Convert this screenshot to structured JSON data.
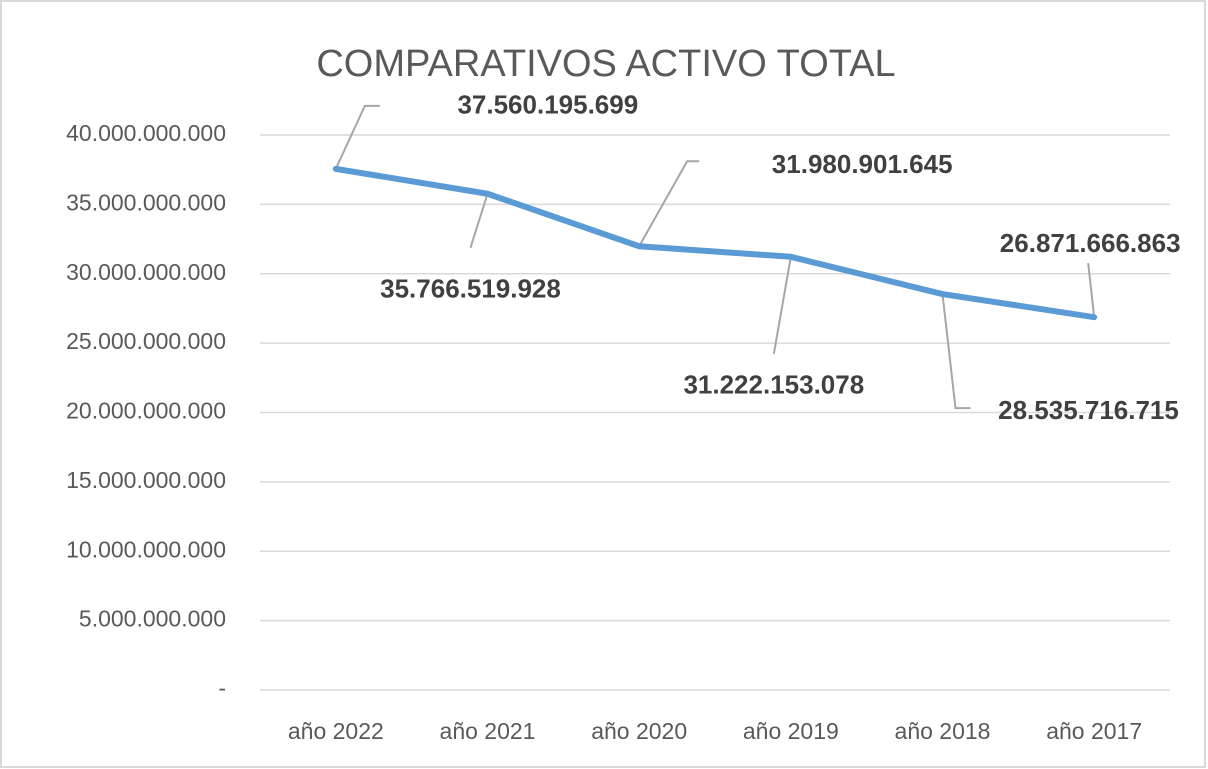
{
  "chart_data": {
    "type": "line",
    "title": "COMPARATIVOS ACTIVO TOTAL",
    "categories": [
      "año 2022",
      "año 2021",
      "año 2020",
      "año 2019",
      "año 2018",
      "año 2017"
    ],
    "series": [
      {
        "name": "Activo Total",
        "color": "#5b9bd5",
        "values": [
          37560195699,
          35766519928,
          31980901645,
          31222153078,
          28535716715,
          26871666863
        ],
        "value_labels": [
          "37.560.195.699",
          "35.766.519.928",
          "31.980.901.645",
          "31.222.153.078",
          "28.535.716.715",
          "26.871.666.863"
        ]
      }
    ],
    "ylim": [
      0,
      40000000000
    ],
    "yticks": [
      {
        "value": 0,
        "label": "-"
      },
      {
        "value": 5000000000,
        "label": "5.000.000.000"
      },
      {
        "value": 10000000000,
        "label": "10.000.000.000"
      },
      {
        "value": 15000000000,
        "label": "15.000.000.000"
      },
      {
        "value": 20000000000,
        "label": "20.000.000.000"
      },
      {
        "value": 25000000000,
        "label": "25.000.000.000"
      },
      {
        "value": 30000000000,
        "label": "30.000.000.000"
      },
      {
        "value": 35000000000,
        "label": "35.000.000.000"
      },
      {
        "value": 40000000000,
        "label": "40.000.000.000"
      }
    ],
    "grid": true
  }
}
